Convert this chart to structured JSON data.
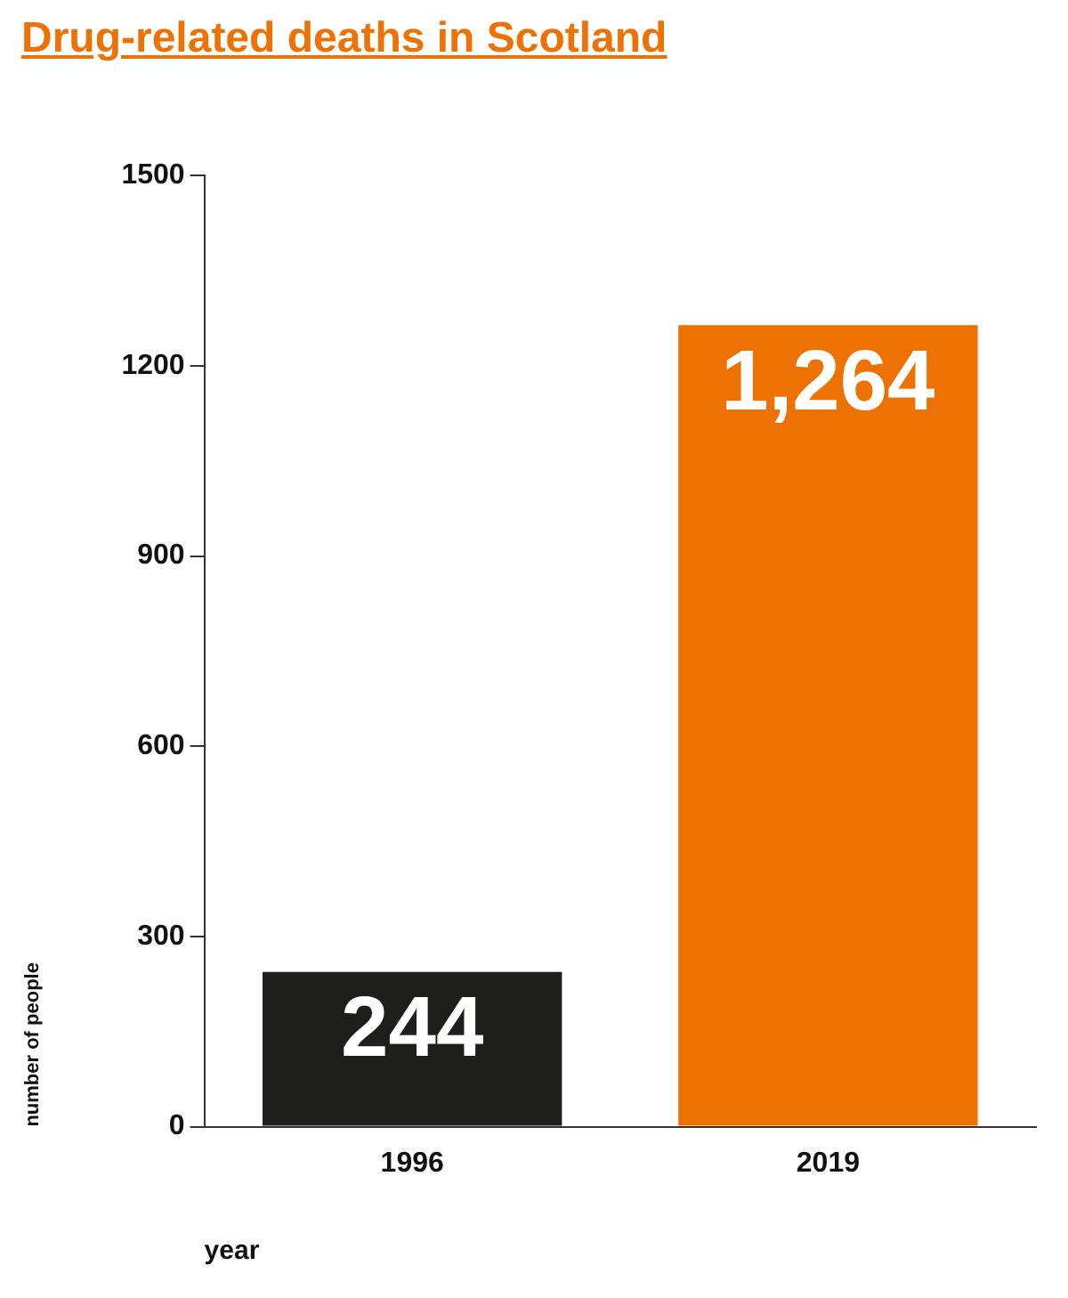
{
  "chart_data": {
    "type": "bar",
    "title": "Drug-related deaths in Scotland",
    "xlabel": "year",
    "ylabel": "number of people",
    "categories": [
      "1996",
      "2019"
    ],
    "values": [
      244,
      1264
    ],
    "colors": [
      "#1e1e1c",
      "#ee7203"
    ],
    "value_labels": [
      "244",
      "1,264"
    ],
    "ylim": [
      0,
      1500
    ],
    "yticks": [
      0,
      300,
      600,
      900,
      1200,
      1500
    ],
    "grid": false,
    "legend": false
  }
}
